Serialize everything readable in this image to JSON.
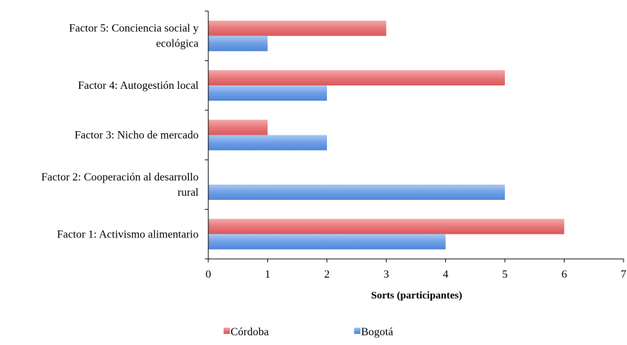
{
  "chart_data": {
    "type": "bar",
    "orientation": "horizontal",
    "categories": [
      "Factor 1: Activismo alimentario",
      "Factor 2: Cooperación al desarrollo rural",
      "Factor 3: Nicho de mercado",
      "Factor 4: Autogestión local",
      "Factor 5: Conciencia social y ecológica"
    ],
    "category_lines": [
      [
        "Factor 1: Activismo alimentario"
      ],
      [
        "Factor 2: Cooperación al desarrollo",
        "rural"
      ],
      [
        "Factor 3: Nicho de mercado"
      ],
      [
        "Factor 4: Autogestión local"
      ],
      [
        "Factor 5: Conciencia social y",
        "ecológica"
      ]
    ],
    "series": [
      {
        "name": "Córdoba",
        "color": "#e46a6c",
        "values": [
          6,
          0,
          1,
          5,
          3
        ]
      },
      {
        "name": "Bogotá",
        "color": "#5f93e0",
        "values": [
          4,
          5,
          2,
          2,
          1
        ]
      }
    ],
    "xlabel": "Sorts (participantes)",
    "ylabel": "",
    "xlim": [
      0,
      7
    ],
    "xticks": [
      "0",
      "1",
      "2",
      "3",
      "4",
      "5",
      "6",
      "7"
    ],
    "grid": false,
    "legend_position": "bottom"
  }
}
